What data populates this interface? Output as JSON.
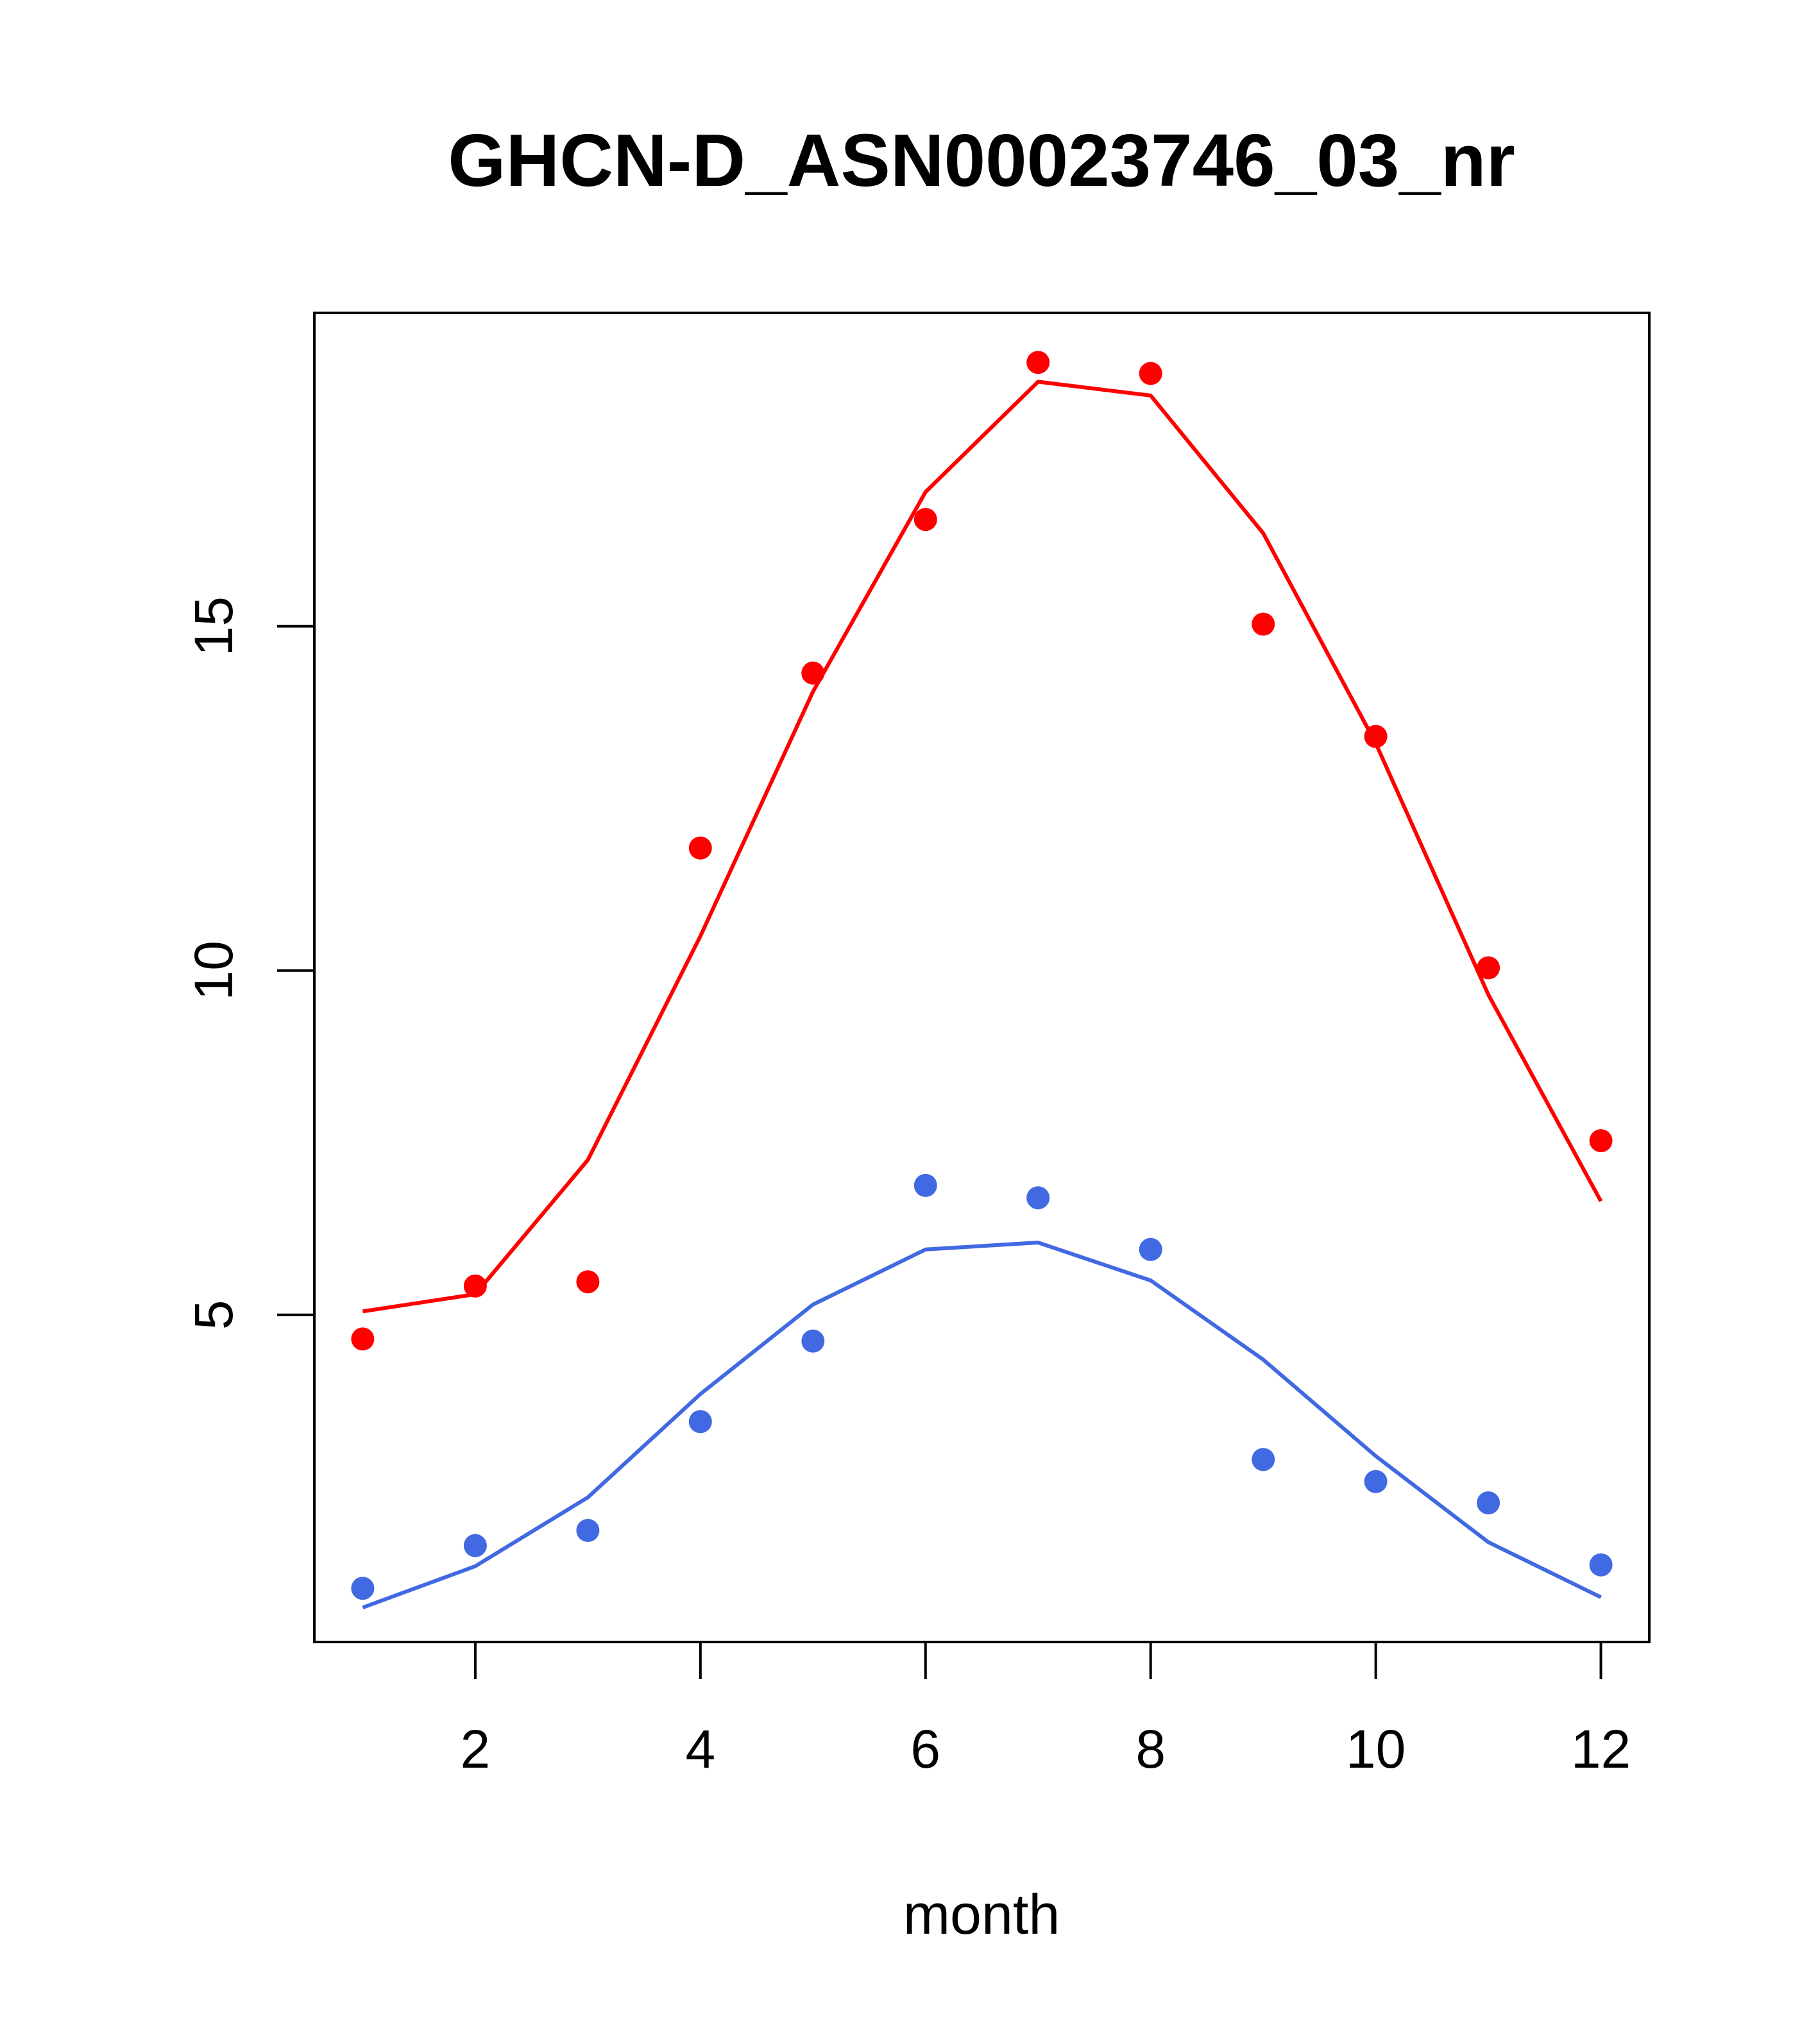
{
  "chart_data": {
    "type": "line",
    "title": "GHCN-D_ASN00023746_03_nr",
    "xlabel": "month",
    "ylabel": "",
    "xlim": [
      0.57,
      12.43
    ],
    "ylim": [
      0.25,
      19.55
    ],
    "x_ticks": [
      2,
      4,
      6,
      8,
      10,
      12
    ],
    "y_ticks": [
      5,
      10,
      15
    ],
    "grid": false,
    "legend": "none",
    "series": [
      {
        "color": "#ff0000",
        "x": [
          1,
          2,
          3,
          4,
          5,
          6,
          7,
          8,
          9,
          10,
          11,
          12
        ],
        "points": [
          4.65,
          5.42,
          5.48,
          11.78,
          14.32,
          16.55,
          18.83,
          18.67,
          15.03,
          13.4,
          10.04,
          7.53
        ],
        "line": [
          5.05,
          5.3,
          7.25,
          10.5,
          14.05,
          16.95,
          18.55,
          18.35,
          16.35,
          13.3,
          9.65,
          6.65
        ]
      },
      {
        "color": "#4169e1",
        "x": [
          1,
          2,
          3,
          4,
          5,
          6,
          7,
          8,
          9,
          10,
          11,
          12
        ],
        "points": [
          1.03,
          1.65,
          1.87,
          3.45,
          4.62,
          6.88,
          6.7,
          5.95,
          2.9,
          2.58,
          2.27,
          1.37
        ],
        "line": [
          0.75,
          1.35,
          2.35,
          3.85,
          5.15,
          5.95,
          6.05,
          5.5,
          4.35,
          2.95,
          1.7,
          0.9
        ]
      }
    ]
  }
}
